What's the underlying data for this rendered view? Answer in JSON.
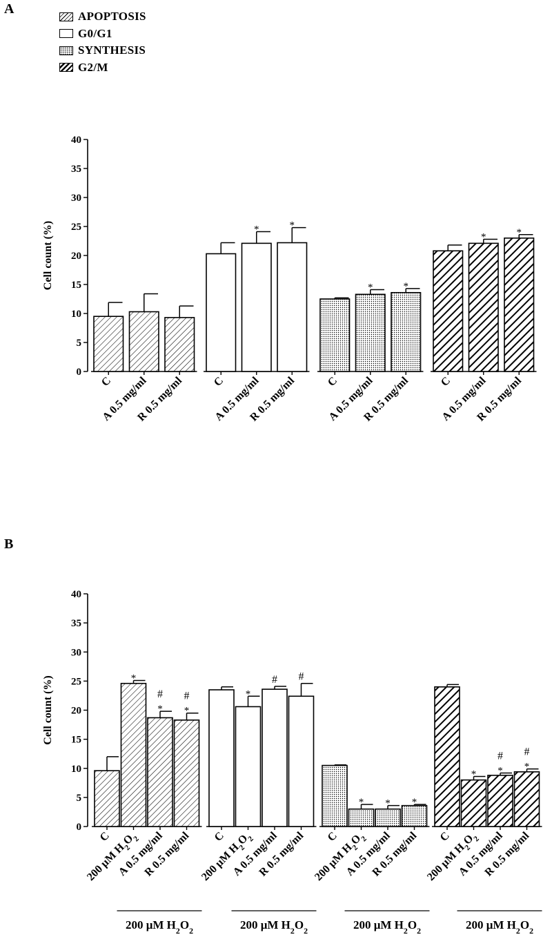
{
  "legend": [
    {
      "label": "APOPTOSIS",
      "pattern": "hatch-light"
    },
    {
      "label": "G0/G1",
      "pattern": "white"
    },
    {
      "label": "SYNTHESIS",
      "pattern": "dots"
    },
    {
      "label": "G2/M",
      "pattern": "hatch-dark"
    }
  ],
  "chart_data": [
    {
      "panel": "A",
      "type": "bar",
      "ylabel": "Cell count (%)",
      "ylim": [
        0,
        40
      ],
      "yticks": [
        0,
        5,
        10,
        15,
        20,
        25,
        30,
        35,
        40
      ],
      "groups": [
        {
          "name": "APOPTOSIS",
          "pattern": "hatch-light",
          "categories": [
            "C",
            "A 0.5 mg/ml",
            "R 0.5 mg/ml"
          ],
          "values": [
            9.5,
            10.3,
            9.3
          ],
          "errors": [
            2.4,
            3.1,
            2.0
          ],
          "marks": [
            "",
            "",
            ""
          ]
        },
        {
          "name": "G0/G1",
          "pattern": "white",
          "categories": [
            "C",
            "A 0.5 mg/ml",
            "R 0.5 mg/ml"
          ],
          "values": [
            20.3,
            22.1,
            22.2
          ],
          "errors": [
            1.9,
            2.0,
            2.6
          ],
          "marks": [
            "",
            "*",
            "*"
          ]
        },
        {
          "name": "SYNTHESIS",
          "pattern": "dots",
          "categories": [
            "C",
            "A 0.5 mg/ml",
            "R 0.5 mg/ml"
          ],
          "values": [
            12.5,
            13.3,
            13.6
          ],
          "errors": [
            0.2,
            0.8,
            0.7
          ],
          "marks": [
            "",
            "*",
            "*"
          ]
        },
        {
          "name": "G2/M",
          "pattern": "hatch-dark",
          "categories": [
            "C",
            "A 0.5 mg/ml",
            "R 0.5 mg/ml"
          ],
          "values": [
            20.8,
            22.1,
            23.0
          ],
          "errors": [
            1.0,
            0.7,
            0.6
          ],
          "marks": [
            "",
            "*",
            "*"
          ]
        }
      ]
    },
    {
      "panel": "B",
      "type": "bar",
      "ylabel": "Cell count (%)",
      "ylim": [
        0,
        40
      ],
      "yticks": [
        0,
        5,
        10,
        15,
        20,
        25,
        30,
        35,
        40
      ],
      "bracket_label": "200 μM H2O2",
      "groups": [
        {
          "name": "APOPTOSIS",
          "pattern": "hatch-light",
          "categories": [
            "C",
            "200 μM H2O2",
            "A 0.5 mg/ml",
            "R 0.5 mg/ml"
          ],
          "values": [
            9.6,
            24.6,
            18.7,
            18.3
          ],
          "errors": [
            2.4,
            0.5,
            1.1,
            1.2
          ],
          "marks": [
            "",
            "*",
            "#\n*",
            "#\n*"
          ]
        },
        {
          "name": "G0/G1",
          "pattern": "white",
          "categories": [
            "C",
            "200 μM H2O2",
            "A 0.5 mg/ml",
            "R 0.5 mg/ml"
          ],
          "values": [
            23.5,
            20.6,
            23.6,
            22.4
          ],
          "errors": [
            0.5,
            1.8,
            0.5,
            2.2
          ],
          "marks": [
            "",
            "*",
            "#",
            "#"
          ]
        },
        {
          "name": "SYNTHESIS",
          "pattern": "dots",
          "categories": [
            "C",
            "200 μM H2O2",
            "A 0.5 mg/ml",
            "R 0.5 mg/ml"
          ],
          "values": [
            10.5,
            3.0,
            3.0,
            3.6
          ],
          "errors": [
            0.1,
            0.8,
            0.6,
            0.2
          ],
          "marks": [
            "",
            "*",
            "*",
            "*"
          ]
        },
        {
          "name": "G2/M",
          "pattern": "hatch-dark",
          "categories": [
            "C",
            "200 μM H2O2",
            "A 0.5 mg/ml",
            "R 0.5 mg/ml"
          ],
          "values": [
            24.0,
            8.0,
            8.8,
            9.4
          ],
          "errors": [
            0.4,
            0.6,
            0.4,
            0.5
          ],
          "marks": [
            "",
            "*",
            "#\n*",
            "#\n*"
          ]
        }
      ]
    }
  ]
}
